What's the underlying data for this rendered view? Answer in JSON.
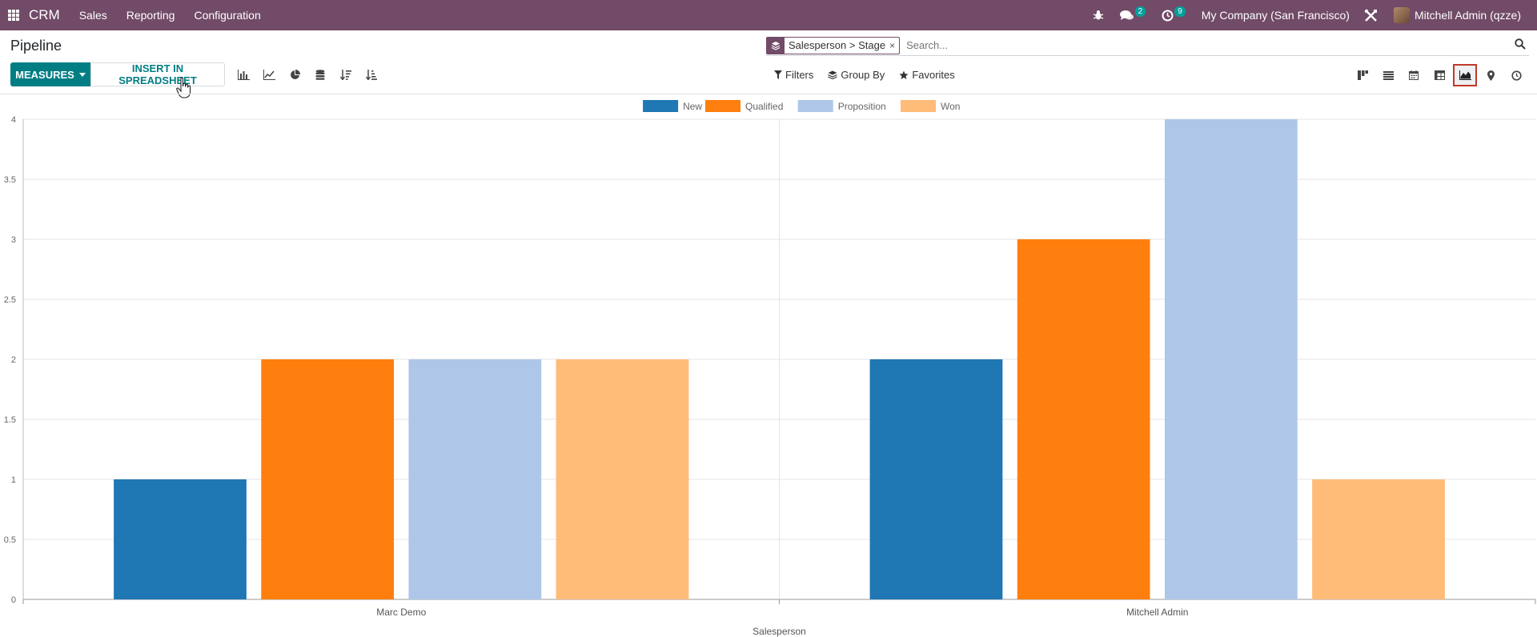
{
  "navbar": {
    "app_name": "CRM",
    "menu": [
      {
        "label": "Sales"
      },
      {
        "label": "Reporting"
      },
      {
        "label": "Configuration"
      }
    ],
    "messages_count": "2",
    "activities_count": "9",
    "company": "My Company (San Francisco)",
    "user": "Mitchell Admin (qzze)"
  },
  "page": {
    "title": "Pipeline"
  },
  "search": {
    "facet_label": "Salesperson > Stage",
    "facet_close": "×",
    "placeholder": "Search..."
  },
  "buttons": {
    "measures": "MEASURES",
    "insert": "INSERT IN SPREADSHEET"
  },
  "filters": {
    "filters_label": "Filters",
    "groupby_label": "Group By",
    "favorites_label": "Favorites"
  },
  "colors": {
    "brand": "#714B67",
    "primary": "#017e84",
    "series": [
      "#1f77b4",
      "#ff7f0e",
      "#aec7e8",
      "#ffbb78"
    ]
  },
  "chart_data": {
    "type": "bar",
    "categories": [
      "Marc Demo",
      "Mitchell Admin"
    ],
    "series": [
      {
        "name": "New",
        "values": [
          1,
          2
        ]
      },
      {
        "name": "Qualified",
        "values": [
          2,
          3
        ]
      },
      {
        "name": "Proposition",
        "values": [
          2,
          4
        ]
      },
      {
        "name": "Won",
        "values": [
          2,
          1
        ]
      }
    ],
    "xlabel": "Salesperson",
    "ylabel": "",
    "ylim": [
      0,
      4
    ],
    "yticks": [
      "0",
      "0.5",
      "1",
      "1.5",
      "2",
      "2.5",
      "3",
      "3.5",
      "4"
    ],
    "grid": true,
    "legend": "top"
  }
}
